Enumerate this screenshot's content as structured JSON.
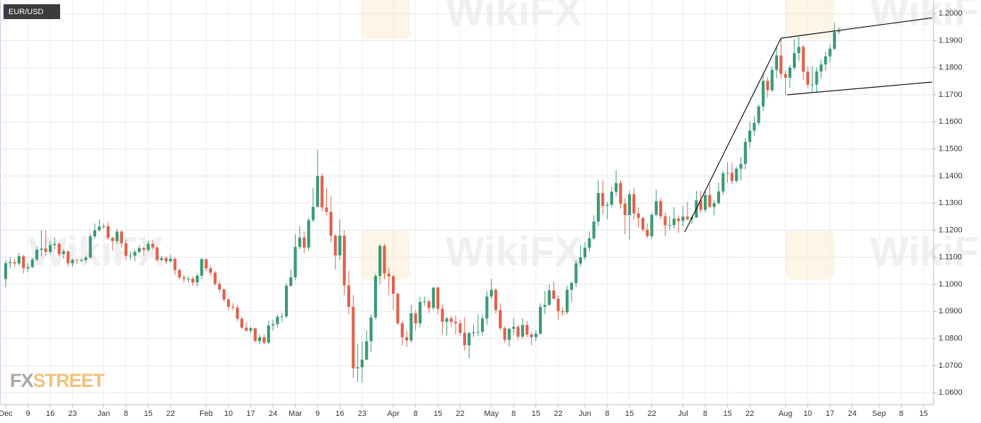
{
  "chart_data": {
    "type": "candlestick",
    "title": "EUR/USD",
    "brand": [
      "FX",
      "STREET"
    ],
    "watermark": "WikiFX",
    "up_color": "#3a9a74",
    "down_color": "#e0624c",
    "grid": true,
    "xlim": [
      -1.27,
      208.25
    ],
    "ylim": [
      1.0556,
      1.205
    ],
    "xticks": [
      {
        "value": 0,
        "label": "Dec"
      },
      {
        "value": 5,
        "label": "9"
      },
      {
        "value": 10,
        "label": "16"
      },
      {
        "value": 15,
        "label": "23"
      },
      {
        "value": 22,
        "label": "Jan"
      },
      {
        "value": 27,
        "label": "8"
      },
      {
        "value": 32,
        "label": "15"
      },
      {
        "value": 37,
        "label": "22"
      },
      {
        "value": 45,
        "label": "Feb"
      },
      {
        "value": 50,
        "label": "10"
      },
      {
        "value": 55,
        "label": "17"
      },
      {
        "value": 60,
        "label": "24"
      },
      {
        "value": 65,
        "label": "Mar"
      },
      {
        "value": 70,
        "label": "9"
      },
      {
        "value": 75,
        "label": "16"
      },
      {
        "value": 80,
        "label": "23"
      },
      {
        "value": 87,
        "label": "Apr"
      },
      {
        "value": 92,
        "label": "8"
      },
      {
        "value": 97,
        "label": "15"
      },
      {
        "value": 102,
        "label": "22"
      },
      {
        "value": 109,
        "label": "May"
      },
      {
        "value": 114,
        "label": "8"
      },
      {
        "value": 119,
        "label": "15"
      },
      {
        "value": 124,
        "label": "22"
      },
      {
        "value": 130,
        "label": "Jun"
      },
      {
        "value": 135,
        "label": "8"
      },
      {
        "value": 140,
        "label": "15"
      },
      {
        "value": 145,
        "label": "22"
      },
      {
        "value": 152,
        "label": "Jul"
      },
      {
        "value": 157,
        "label": "8"
      },
      {
        "value": 162,
        "label": "15"
      },
      {
        "value": 167,
        "label": "22"
      },
      {
        "value": 175,
        "label": "Aug"
      },
      {
        "value": 180,
        "label": "10"
      },
      {
        "value": 185,
        "label": "17"
      },
      {
        "value": 190,
        "label": "24"
      },
      {
        "value": 196,
        "label": "Sep"
      },
      {
        "value": 201,
        "label": "8"
      },
      {
        "value": 206,
        "label": "15"
      }
    ],
    "yticks": [
      {
        "value": 1.06,
        "label": "1.0600"
      },
      {
        "value": 1.07,
        "label": "1.0700"
      },
      {
        "value": 1.08,
        "label": "1.0800"
      },
      {
        "value": 1.09,
        "label": "1.0900"
      },
      {
        "value": 1.1,
        "label": "1.1000"
      },
      {
        "value": 1.11,
        "label": "1.1100"
      },
      {
        "value": 1.12,
        "label": "1.1200"
      },
      {
        "value": 1.13,
        "label": "1.1300"
      },
      {
        "value": 1.14,
        "label": "1.1400"
      },
      {
        "value": 1.15,
        "label": "1.1500"
      },
      {
        "value": 1.16,
        "label": "1.1600"
      },
      {
        "value": 1.17,
        "label": "1.1700"
      },
      {
        "value": 1.18,
        "label": "1.1800"
      },
      {
        "value": 1.19,
        "label": "1.1900"
      },
      {
        "value": 1.2,
        "label": "1.2000"
      }
    ],
    "trend_lines": [
      {
        "x": [
          152.4,
          174
        ],
        "y": [
          1.1193,
          1.1909
        ]
      },
      {
        "x": [
          174,
          207.9
        ],
        "y": [
          1.1909,
          1.1984
        ]
      },
      {
        "x": [
          175.4,
          207.9
        ],
        "y": [
          1.17,
          1.1747
        ]
      }
    ],
    "ohlc": [
      [
        1.102,
        1.109,
        1.099,
        1.1078
      ],
      [
        1.1078,
        1.11,
        1.106,
        1.1082
      ],
      [
        1.1082,
        1.1095,
        1.1065,
        1.1077
      ],
      [
        1.1077,
        1.1116,
        1.107,
        1.1104
      ],
      [
        1.1104,
        1.111,
        1.104,
        1.1059
      ],
      [
        1.1059,
        1.108,
        1.1045,
        1.1064
      ],
      [
        1.1064,
        1.11,
        1.106,
        1.1092
      ],
      [
        1.1092,
        1.114,
        1.1085,
        1.1128
      ],
      [
        1.1128,
        1.12,
        1.1105,
        1.1132
      ],
      [
        1.1132,
        1.1199,
        1.1105,
        1.112
      ],
      [
        1.112,
        1.116,
        1.111,
        1.1145
      ],
      [
        1.1145,
        1.1175,
        1.113,
        1.115
      ],
      [
        1.115,
        1.1155,
        1.1105,
        1.1112
      ],
      [
        1.1112,
        1.113,
        1.1095,
        1.1122
      ],
      [
        1.1122,
        1.1125,
        1.1065,
        1.1078
      ],
      [
        1.1078,
        1.1095,
        1.1065,
        1.109
      ],
      [
        1.109,
        1.1095,
        1.1075,
        1.1089
      ],
      [
        1.1089,
        1.1095,
        1.1082,
        1.109
      ],
      [
        1.109,
        1.1105,
        1.108,
        1.1099
      ],
      [
        1.1099,
        1.1187,
        1.1095,
        1.1177
      ],
      [
        1.1177,
        1.1225,
        1.117,
        1.12
      ],
      [
        1.12,
        1.124,
        1.1195,
        1.1213
      ],
      [
        1.1213,
        1.1225,
        1.1205,
        1.1215
      ],
      [
        1.1215,
        1.123,
        1.1165,
        1.1172
      ],
      [
        1.1172,
        1.1175,
        1.1125,
        1.116
      ],
      [
        1.116,
        1.1205,
        1.115,
        1.1195
      ],
      [
        1.1195,
        1.12,
        1.1135,
        1.1152
      ],
      [
        1.1152,
        1.1165,
        1.109,
        1.1105
      ],
      [
        1.1105,
        1.112,
        1.109,
        1.1106
      ],
      [
        1.1106,
        1.1128,
        1.1085,
        1.112
      ],
      [
        1.112,
        1.1145,
        1.1115,
        1.1134
      ],
      [
        1.1134,
        1.114,
        1.1105,
        1.1127
      ],
      [
        1.1127,
        1.116,
        1.112,
        1.115
      ],
      [
        1.115,
        1.1165,
        1.113,
        1.1136
      ],
      [
        1.1136,
        1.114,
        1.1085,
        1.109
      ],
      [
        1.109,
        1.1105,
        1.1085,
        1.1097
      ],
      [
        1.1097,
        1.1105,
        1.1075,
        1.1085
      ],
      [
        1.1085,
        1.111,
        1.108,
        1.1094
      ],
      [
        1.1094,
        1.11,
        1.1035,
        1.1053
      ],
      [
        1.1053,
        1.106,
        1.102,
        1.1025
      ],
      [
        1.1025,
        1.1035,
        1.1005,
        1.102
      ],
      [
        1.102,
        1.103,
        1.1005,
        1.1021
      ],
      [
        1.1021,
        1.103,
        1.0995,
        1.1007
      ],
      [
        1.1007,
        1.104,
        1.0992,
        1.1032
      ],
      [
        1.1032,
        1.1098,
        1.102,
        1.1093
      ],
      [
        1.1093,
        1.1095,
        1.105,
        1.1059
      ],
      [
        1.1059,
        1.107,
        1.103,
        1.1043
      ],
      [
        1.1043,
        1.105,
        1.0995,
        1.1002
      ],
      [
        1.1002,
        1.101,
        1.097,
        1.0981
      ],
      [
        1.0981,
        1.0985,
        1.0935,
        1.0944
      ],
      [
        1.0944,
        1.095,
        1.0905,
        1.0917
      ],
      [
        1.0917,
        1.093,
        1.0905,
        1.0914
      ],
      [
        1.0914,
        1.0925,
        1.0865,
        1.0873
      ],
      [
        1.0873,
        1.088,
        1.0835,
        1.084
      ],
      [
        1.084,
        1.086,
        1.0825,
        1.0829
      ],
      [
        1.0829,
        1.0845,
        1.082,
        1.0838
      ],
      [
        1.0838,
        1.084,
        1.0785,
        1.0791
      ],
      [
        1.0791,
        1.0815,
        1.078,
        1.0805
      ],
      [
        1.0805,
        1.0815,
        1.0778,
        1.0785
      ],
      [
        1.0785,
        1.0865,
        1.078,
        1.0848
      ],
      [
        1.0848,
        1.087,
        1.083,
        1.0853
      ],
      [
        1.0853,
        1.089,
        1.084,
        1.088
      ],
      [
        1.088,
        1.0895,
        1.086,
        1.0882
      ],
      [
        1.0882,
        1.1005,
        1.0875,
        1.0995
      ],
      [
        1.0995,
        1.1055,
        1.099,
        1.1026
      ],
      [
        1.1026,
        1.1185,
        1.1015,
        1.1138
      ],
      [
        1.1138,
        1.1215,
        1.113,
        1.1173
      ],
      [
        1.1173,
        1.1195,
        1.1115,
        1.1136
      ],
      [
        1.1136,
        1.1245,
        1.1125,
        1.1237
      ],
      [
        1.1237,
        1.1355,
        1.123,
        1.1286
      ],
      [
        1.1286,
        1.1495,
        1.1285,
        1.14
      ],
      [
        1.14,
        1.141,
        1.127,
        1.1284
      ],
      [
        1.1284,
        1.1355,
        1.1255,
        1.1268
      ],
      [
        1.1268,
        1.1325,
        1.1155,
        1.118
      ],
      [
        1.118,
        1.1185,
        1.1055,
        1.1107
      ],
      [
        1.1107,
        1.124,
        1.109,
        1.118
      ],
      [
        1.118,
        1.12,
        1.096,
        1.0996
      ],
      [
        1.0996,
        1.105,
        1.089,
        1.0917
      ],
      [
        1.0917,
        1.096,
        1.0654,
        1.069
      ],
      [
        1.069,
        1.078,
        1.064,
        1.0694
      ],
      [
        1.0694,
        1.079,
        1.0636,
        1.0722
      ],
      [
        1.0722,
        1.083,
        1.072,
        1.079
      ],
      [
        1.079,
        1.089,
        1.075,
        1.0878
      ],
      [
        1.0878,
        1.104,
        1.087,
        1.1031
      ],
      [
        1.1031,
        1.1148,
        1.1,
        1.1142
      ],
      [
        1.1142,
        1.115,
        1.102,
        1.104
      ],
      [
        1.104,
        1.106,
        1.096,
        1.103
      ],
      [
        1.103,
        1.1035,
        1.0905,
        1.0965
      ],
      [
        1.0965,
        1.097,
        1.085,
        1.0856
      ],
      [
        1.0856,
        1.0865,
        1.0775,
        1.0805
      ],
      [
        1.0805,
        1.083,
        1.077,
        1.0793
      ],
      [
        1.0793,
        1.0925,
        1.0785,
        1.0893
      ],
      [
        1.0893,
        1.0905,
        1.083,
        1.0856
      ],
      [
        1.0856,
        1.0955,
        1.084,
        1.0935
      ],
      [
        1.0935,
        1.0955,
        1.092,
        1.0937
      ],
      [
        1.0937,
        1.0945,
        1.0895,
        1.0913
      ],
      [
        1.0913,
        1.099,
        1.0905,
        1.0988
      ],
      [
        1.0988,
        1.0992,
        1.089,
        1.091
      ],
      [
        1.091,
        1.0925,
        1.0815,
        1.0862
      ],
      [
        1.0862,
        1.088,
        1.081,
        1.0874
      ],
      [
        1.0874,
        1.0885,
        1.0845,
        1.0862
      ],
      [
        1.0862,
        1.0885,
        1.0815,
        1.0856
      ],
      [
        1.0856,
        1.087,
        1.081,
        1.0821
      ],
      [
        1.0821,
        1.088,
        1.0755,
        1.0775
      ],
      [
        1.0775,
        1.0825,
        1.0727,
        1.082
      ],
      [
        1.082,
        1.085,
        1.0805,
        1.0823
      ],
      [
        1.0823,
        1.089,
        1.081,
        1.0825
      ],
      [
        1.0825,
        1.089,
        1.081,
        1.0874
      ],
      [
        1.0874,
        1.0975,
        1.085,
        1.0955
      ],
      [
        1.0955,
        1.102,
        1.0945,
        1.098
      ],
      [
        1.098,
        1.0985,
        1.089,
        1.0905
      ],
      [
        1.0905,
        1.093,
        1.083,
        1.0838
      ],
      [
        1.0838,
        1.0845,
        1.0785,
        1.0795
      ],
      [
        1.0795,
        1.084,
        1.077,
        1.0836
      ],
      [
        1.0836,
        1.0875,
        1.0815,
        1.0843
      ],
      [
        1.0843,
        1.085,
        1.0795,
        1.0807
      ],
      [
        1.0807,
        1.0875,
        1.08,
        1.085
      ],
      [
        1.085,
        1.0865,
        1.0805,
        1.0815
      ],
      [
        1.0815,
        1.0825,
        1.0775,
        1.0805
      ],
      [
        1.0805,
        1.083,
        1.079,
        1.0818
      ],
      [
        1.0818,
        1.093,
        1.0815,
        1.0917
      ],
      [
        1.0917,
        1.0975,
        1.089,
        1.0924
      ],
      [
        1.0924,
        1.1,
        1.092,
        1.0978
      ],
      [
        1.0978,
        1.101,
        1.0945,
        1.0947
      ],
      [
        1.0947,
        1.096,
        1.087,
        1.0901
      ],
      [
        1.0901,
        1.0915,
        1.0885,
        1.0897
      ],
      [
        1.0897,
        1.0995,
        1.089,
        1.098
      ],
      [
        1.098,
        1.101,
        1.0935,
        1.1005
      ],
      [
        1.1005,
        1.109,
        1.099,
        1.1077
      ],
      [
        1.1077,
        1.1145,
        1.1065,
        1.11
      ],
      [
        1.11,
        1.1155,
        1.109,
        1.1135
      ],
      [
        1.1135,
        1.1195,
        1.112,
        1.117
      ],
      [
        1.117,
        1.1255,
        1.1165,
        1.1232
      ],
      [
        1.1232,
        1.1385,
        1.1215,
        1.1337
      ],
      [
        1.1337,
        1.1385,
        1.126,
        1.129
      ],
      [
        1.129,
        1.1305,
        1.124,
        1.1294
      ],
      [
        1.1294,
        1.136,
        1.1285,
        1.1342
      ],
      [
        1.1342,
        1.1422,
        1.1325,
        1.1374
      ],
      [
        1.1374,
        1.1385,
        1.128,
        1.1298
      ],
      [
        1.1298,
        1.132,
        1.1185,
        1.1256
      ],
      [
        1.1256,
        1.1345,
        1.1165,
        1.1333
      ],
      [
        1.1333,
        1.1355,
        1.124,
        1.1262
      ],
      [
        1.1262,
        1.1285,
        1.121,
        1.1245
      ],
      [
        1.1245,
        1.125,
        1.1195,
        1.1202
      ],
      [
        1.1202,
        1.1225,
        1.117,
        1.1178
      ],
      [
        1.1178,
        1.1265,
        1.117,
        1.1257
      ],
      [
        1.1257,
        1.135,
        1.125,
        1.1307
      ],
      [
        1.1307,
        1.132,
        1.124,
        1.1251
      ],
      [
        1.1251,
        1.1265,
        1.118,
        1.1218
      ],
      [
        1.1218,
        1.125,
        1.12,
        1.1219
      ],
      [
        1.1219,
        1.1285,
        1.1205,
        1.1243
      ],
      [
        1.1243,
        1.1255,
        1.119,
        1.1234
      ],
      [
        1.1234,
        1.129,
        1.1215,
        1.125
      ],
      [
        1.125,
        1.1305,
        1.1235,
        1.1241
      ],
      [
        1.1241,
        1.1255,
        1.1225,
        1.1247
      ],
      [
        1.1247,
        1.1345,
        1.1245,
        1.131
      ],
      [
        1.131,
        1.1345,
        1.1265,
        1.1275
      ],
      [
        1.1275,
        1.1345,
        1.1265,
        1.133
      ],
      [
        1.133,
        1.137,
        1.128,
        1.1286
      ],
      [
        1.1286,
        1.131,
        1.1255,
        1.13
      ],
      [
        1.13,
        1.1375,
        1.1295,
        1.1343
      ],
      [
        1.1343,
        1.142,
        1.133,
        1.141
      ],
      [
        1.141,
        1.145,
        1.1375,
        1.1412
      ],
      [
        1.1412,
        1.145,
        1.137,
        1.1382
      ],
      [
        1.1382,
        1.1435,
        1.1375,
        1.1427
      ],
      [
        1.1427,
        1.147,
        1.1385,
        1.1445
      ],
      [
        1.1445,
        1.154,
        1.1425,
        1.1526
      ],
      [
        1.1526,
        1.16,
        1.1505,
        1.1568
      ],
      [
        1.1568,
        1.162,
        1.155,
        1.1596
      ],
      [
        1.1596,
        1.1665,
        1.1585,
        1.1657
      ],
      [
        1.1657,
        1.178,
        1.164,
        1.1751
      ],
      [
        1.1751,
        1.1765,
        1.169,
        1.1717
      ],
      [
        1.1717,
        1.1805,
        1.171,
        1.1792
      ],
      [
        1.1792,
        1.188,
        1.176,
        1.1845
      ],
      [
        1.1845,
        1.1908,
        1.176,
        1.1777
      ],
      [
        1.1777,
        1.179,
        1.17,
        1.1763
      ],
      [
        1.1763,
        1.181,
        1.1725,
        1.18
      ],
      [
        1.18,
        1.1905,
        1.179,
        1.1854
      ],
      [
        1.1854,
        1.1915,
        1.1825,
        1.1877
      ],
      [
        1.1877,
        1.1885,
        1.1755,
        1.1785
      ],
      [
        1.1785,
        1.1805,
        1.1725,
        1.1737
      ],
      [
        1.1737,
        1.1805,
        1.171,
        1.1738
      ],
      [
        1.1738,
        1.18,
        1.171,
        1.1786
      ],
      [
        1.1786,
        1.183,
        1.176,
        1.1812
      ],
      [
        1.1812,
        1.186,
        1.179,
        1.1842
      ],
      [
        1.1842,
        1.1885,
        1.182,
        1.187
      ],
      [
        1.187,
        1.1966,
        1.1865,
        1.1932
      ],
      [
        1.1932,
        1.195,
        1.1925,
        1.1935
      ]
    ]
  }
}
